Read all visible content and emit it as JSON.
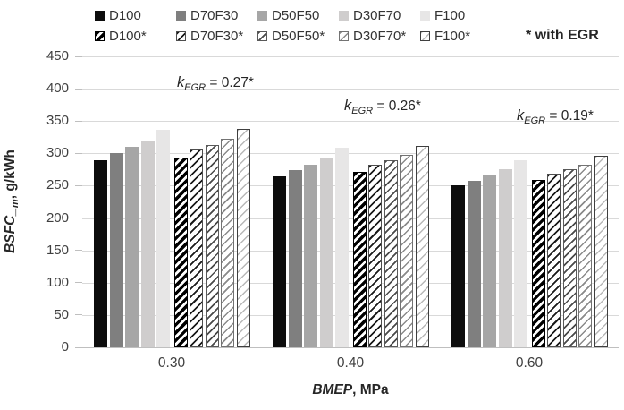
{
  "chart_data": {
    "type": "bar",
    "title": "",
    "xlabel": "BMEP, MPa",
    "xlabel_parts": {
      "main": "BMEP",
      "rest": ", MPa"
    },
    "ylabel": "BSFC_m, g/kWh",
    "ylabel_parts": {
      "main": "BSFC_",
      "sub": "m",
      "rest": ", g/kWh"
    },
    "legend_note": "* with EGR",
    "legend_position": "top",
    "grid": "horizontal",
    "categories": [
      "0.30",
      "0.40",
      "0.60"
    ],
    "ylim": [
      0,
      450
    ],
    "yticks": [
      0,
      50,
      100,
      150,
      200,
      250,
      300,
      350,
      400,
      450
    ],
    "series": [
      {
        "name": "D100",
        "fill": "#0d0d0d",
        "values": [
          289,
          264,
          250
        ]
      },
      {
        "name": "D70F30",
        "fill": "#7f7f7f",
        "values": [
          300,
          274,
          258
        ]
      },
      {
        "name": "D50F50",
        "fill": "#a6a6a6",
        "values": [
          310,
          282,
          266
        ]
      },
      {
        "name": "D30F70",
        "fill": "#cfcdcd",
        "values": [
          320,
          293,
          276
        ]
      },
      {
        "name": "F100",
        "fill": "#e7e6e6",
        "values": [
          336,
          309,
          290
        ]
      },
      {
        "name": "D100*",
        "pattern": "hatch-0",
        "values": [
          294,
          272,
          259
        ]
      },
      {
        "name": "D70F30*",
        "pattern": "hatch-1",
        "values": [
          306,
          282,
          269
        ]
      },
      {
        "name": "D50F50*",
        "pattern": "hatch-2",
        "values": [
          313,
          290,
          275
        ]
      },
      {
        "name": "D30F70*",
        "pattern": "hatch-3",
        "values": [
          323,
          298,
          283
        ]
      },
      {
        "name": "F100*",
        "pattern": "hatch-4",
        "values": [
          338,
          312,
          296
        ]
      }
    ],
    "annotations": [
      {
        "text": "k_EGR = 0.27*",
        "k": "k",
        "sub": "EGR",
        "rest": " = 0.27*",
        "x": 106,
        "y": 20
      },
      {
        "text": "k_EGR = 0.26*",
        "k": "k",
        "sub": "EGR",
        "rest": " = 0.26*",
        "x": 293,
        "y": 46
      },
      {
        "text": "k_EGR = 0.19*",
        "k": "k",
        "sub": "EGR",
        "rest": " = 0.19*",
        "x": 486,
        "y": 57
      }
    ]
  }
}
